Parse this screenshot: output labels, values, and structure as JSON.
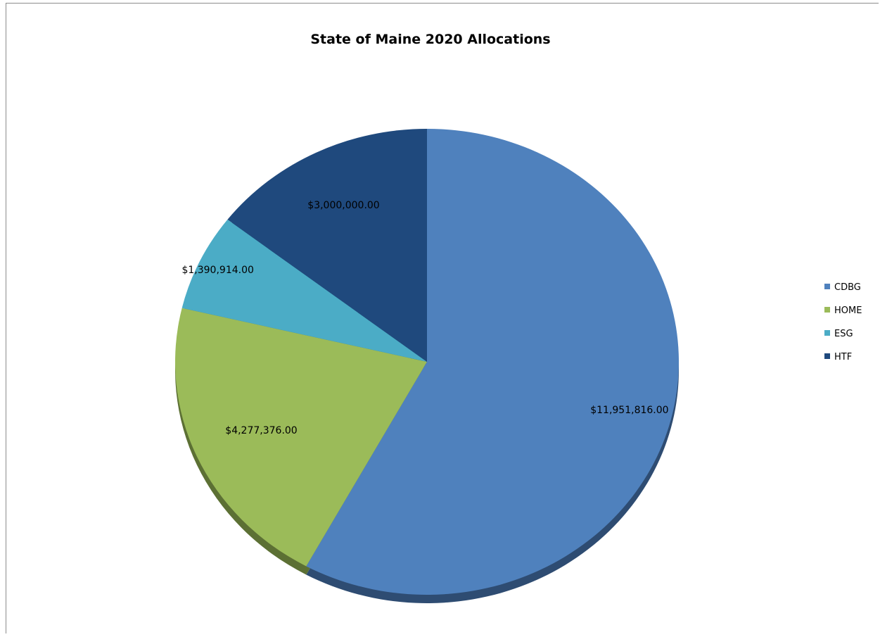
{
  "chart_data": {
    "type": "pie",
    "title": "State of Maine 2020 Allocations",
    "slices": [
      {
        "label": "CDBG",
        "value": 11951816,
        "display": "$11,951,816.00",
        "color": "#4F81BD",
        "shade": "#2E4C72"
      },
      {
        "label": "HOME",
        "value": 4277376,
        "display": "$4,277,376.00",
        "color": "#9BBB59",
        "shade": "#5C7034"
      },
      {
        "label": "ESG",
        "value": 1390914,
        "display": "$1,390,914.00",
        "color": "#4BACC6",
        "shade": "#2C6776"
      },
      {
        "label": "HTF",
        "value": 3000000,
        "display": "$3,000,000.00",
        "color": "#1F497D",
        "shade": "#122B4A"
      }
    ],
    "legend_position": "right",
    "start_angle": "12 o'clock",
    "direction": "clockwise"
  }
}
